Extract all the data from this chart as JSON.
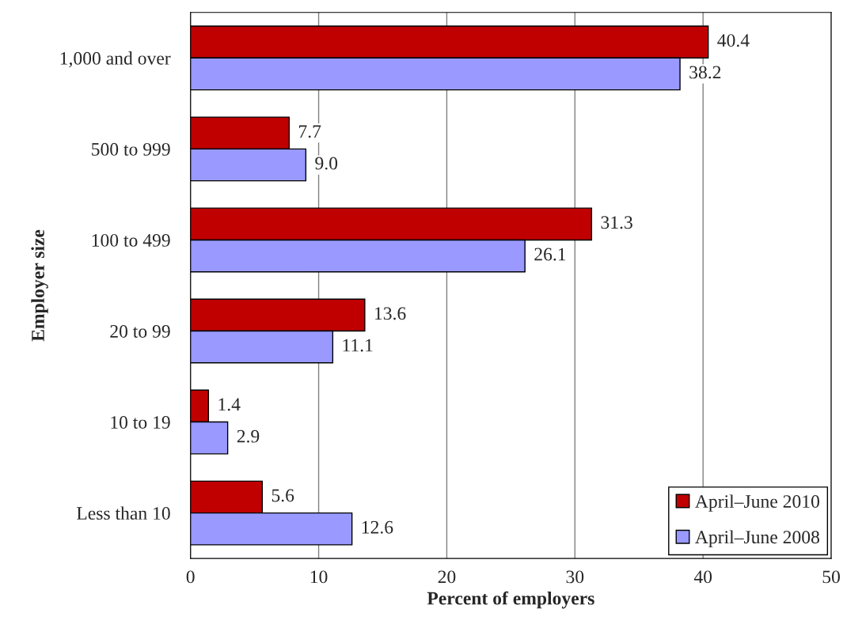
{
  "chart_data": {
    "type": "bar",
    "orientation": "horizontal",
    "xlabel": "Percent of employers",
    "ylabel": "Employer size",
    "categories": [
      "1,000 and over",
      "500 to 999",
      "100 to 499",
      "20 to 99",
      "10 to 19",
      "Less than 10"
    ],
    "series": [
      {
        "name": "April–June 2010",
        "color": "#c00000",
        "values": [
          40.4,
          7.7,
          31.3,
          13.6,
          1.4,
          5.6
        ]
      },
      {
        "name": "April–June 2008",
        "color": "#9999ff",
        "values": [
          38.2,
          9.0,
          26.1,
          11.1,
          2.9,
          12.6
        ]
      }
    ],
    "value_labels": [
      [
        "40.4",
        "7.7",
        "31.3",
        "13.6",
        "1.4",
        "5.6"
      ],
      [
        "38.2",
        "9.0",
        "26.1",
        "11.1",
        "2.9",
        "12.6"
      ]
    ],
    "xlim": [
      0,
      50
    ],
    "xticks": [
      0,
      10,
      20,
      30,
      40,
      50
    ],
    "grid": "x",
    "legend": "bottom right"
  }
}
